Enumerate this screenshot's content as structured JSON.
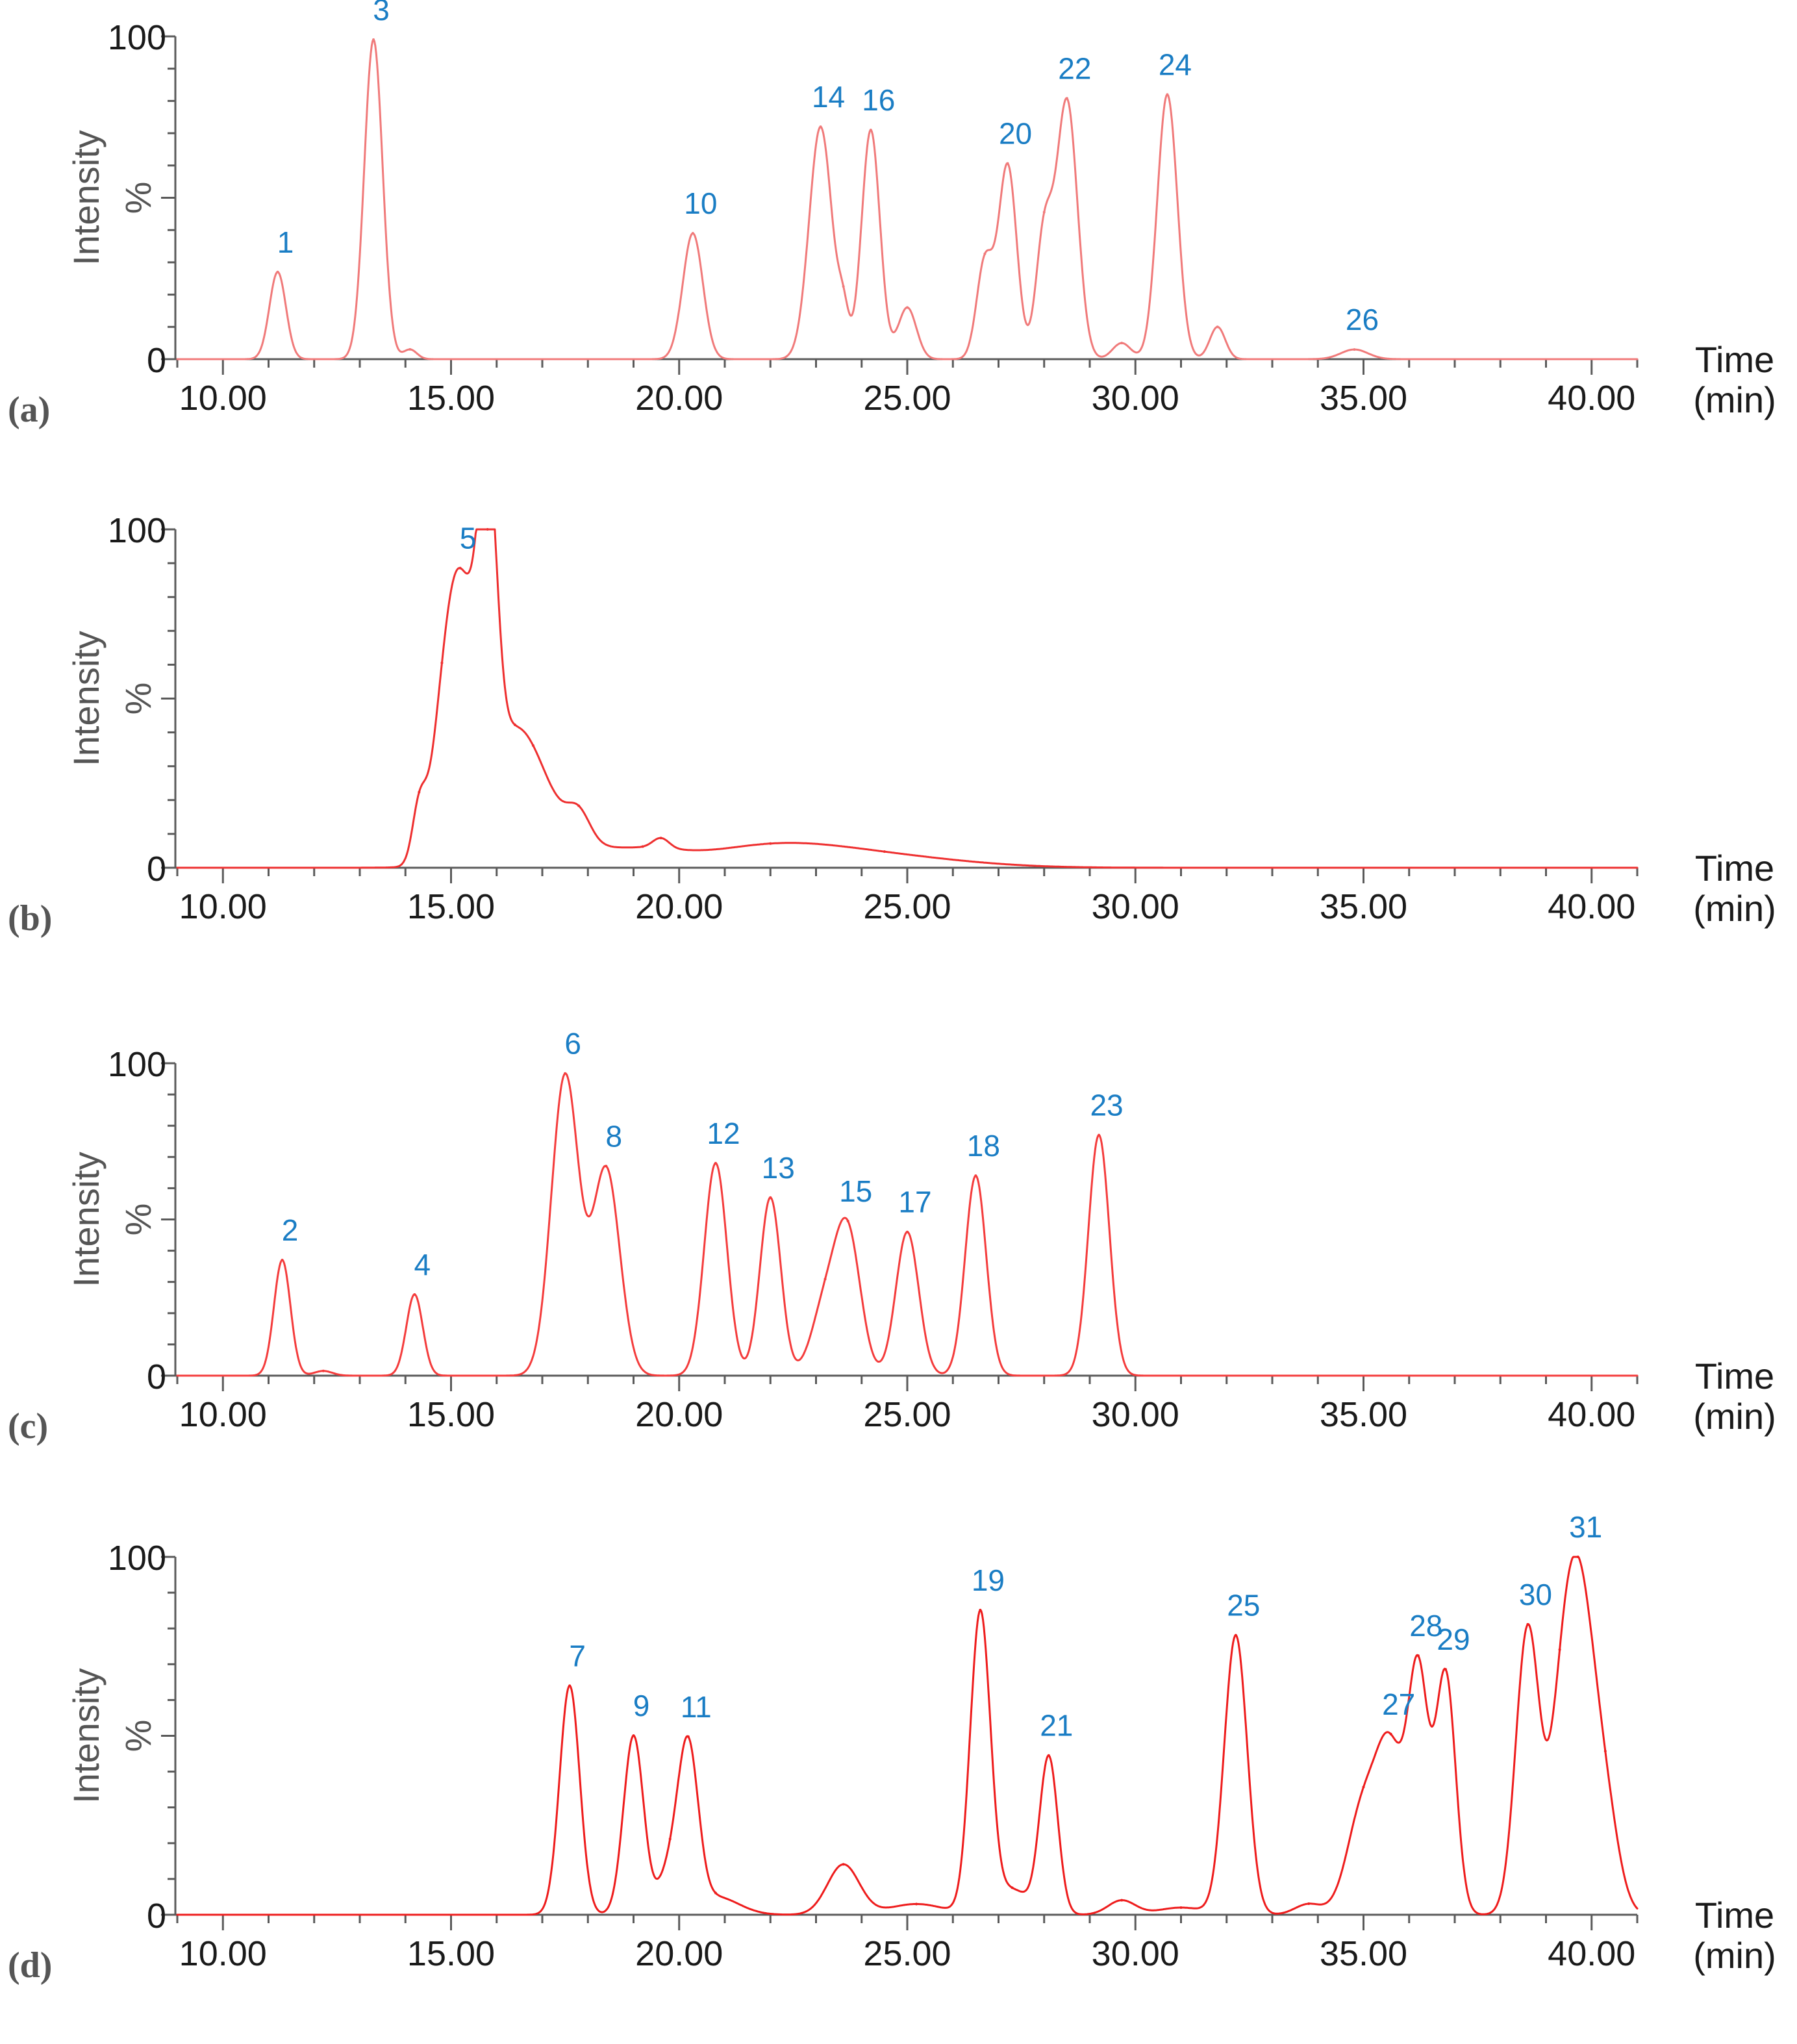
{
  "colors": {
    "trace_a": "#f07a7a",
    "trace_b": "#ee2f2f",
    "trace_c": "#f43c3c",
    "trace_d": "#ee1c1c",
    "peak_label": "#1a7dc4",
    "axis": "#5a5a5a"
  },
  "chart_data": [
    {
      "type": "line",
      "panel_label": "(a)",
      "xlabel": "Time",
      "xunit": "(min)",
      "ylabel": "Intensity",
      "yunit": "%",
      "xlim": [
        9.0,
        41.0
      ],
      "ylim": [
        0,
        100
      ],
      "x_ticks": [
        "10.00",
        "15.00",
        "20.00",
        "25.00",
        "30.00",
        "35.00",
        "40.00"
      ],
      "y_ticks": [
        "0",
        "100"
      ],
      "peaks": [
        {
          "label": "1",
          "x": 11.2,
          "y": 27,
          "w": 0.18
        },
        {
          "label": "3",
          "x": 13.3,
          "y": 99,
          "w": 0.2
        },
        {
          "label": "",
          "x": 14.1,
          "y": 3,
          "w": 0.15
        },
        {
          "label": "10",
          "x": 20.3,
          "y": 39,
          "w": 0.22
        },
        {
          "label": "14",
          "x": 23.1,
          "y": 72,
          "w": 0.25
        },
        {
          "label": "",
          "x": 23.6,
          "y": 12,
          "w": 0.12
        },
        {
          "label": "16",
          "x": 24.2,
          "y": 71,
          "w": 0.2
        },
        {
          "label": "",
          "x": 25.0,
          "y": 16,
          "w": 0.2
        },
        {
          "label": "",
          "x": 26.7,
          "y": 30,
          "w": 0.18
        },
        {
          "label": "20",
          "x": 27.2,
          "y": 60,
          "w": 0.2
        },
        {
          "label": "",
          "x": 28.0,
          "y": 38,
          "w": 0.18
        },
        {
          "label": "22",
          "x": 28.5,
          "y": 80,
          "w": 0.23
        },
        {
          "label": "",
          "x": 29.7,
          "y": 5,
          "w": 0.2
        },
        {
          "label": "24",
          "x": 30.7,
          "y": 82,
          "w": 0.22
        },
        {
          "label": "",
          "x": 31.8,
          "y": 10,
          "w": 0.17
        },
        {
          "label": "26",
          "x": 34.8,
          "y": 3,
          "w": 0.3
        }
      ]
    },
    {
      "type": "line",
      "panel_label": "(b)",
      "xlabel": "Time",
      "xunit": "(min)",
      "ylabel": "Intensity",
      "yunit": "%",
      "xlim": [
        9.0,
        41.0
      ],
      "ylim": [
        0,
        100
      ],
      "x_ticks": [
        "10.00",
        "15.00",
        "20.00",
        "25.00",
        "30.00",
        "35.00",
        "40.00"
      ],
      "y_ticks": [
        "0",
        "100"
      ],
      "peaks": [
        {
          "label": "",
          "x": 14.3,
          "y": 15,
          "w": 0.15
        },
        {
          "label": "",
          "x": 14.8,
          "y": 20,
          "w": 0.28
        },
        {
          "label": "5",
          "x": 15.2,
          "y": 73,
          "w": 0.35
        },
        {
          "label": "",
          "x": 15.8,
          "y": 85,
          "w": 0.2
        },
        {
          "label": "",
          "x": 16.4,
          "y": 30,
          "w": 0.6
        },
        {
          "label": "",
          "x": 16.8,
          "y": 12,
          "w": 1.0
        },
        {
          "label": "",
          "x": 17.8,
          "y": 8,
          "w": 0.25
        },
        {
          "label": "",
          "x": 19.2,
          "y": 4,
          "w": 0.8
        },
        {
          "label": "",
          "x": 19.6,
          "y": 3,
          "w": 0.18
        },
        {
          "label": "",
          "x": 22.0,
          "y": 6,
          "w": 1.6
        },
        {
          "label": "",
          "x": 24.5,
          "y": 3,
          "w": 1.8
        }
      ]
    },
    {
      "type": "line",
      "panel_label": "(c)",
      "xlabel": "Time",
      "xunit": "(min)",
      "ylabel": "Intensity",
      "yunit": "%",
      "xlim": [
        9.0,
        41.0
      ],
      "ylim": [
        0,
        100
      ],
      "x_ticks": [
        "10.00",
        "15.00",
        "20.00",
        "25.00",
        "30.00",
        "35.00",
        "40.00"
      ],
      "y_ticks": [
        "0",
        "100"
      ],
      "peaks": [
        {
          "label": "2",
          "x": 11.3,
          "y": 37,
          "w": 0.18
        },
        {
          "label": "",
          "x": 12.2,
          "y": 1.5,
          "w": 0.2
        },
        {
          "label": "4",
          "x": 14.2,
          "y": 26,
          "w": 0.18
        },
        {
          "label": "6",
          "x": 17.5,
          "y": 96,
          "w": 0.3
        },
        {
          "label": "8",
          "x": 18.4,
          "y": 66,
          "w": 0.3
        },
        {
          "label": "12",
          "x": 20.8,
          "y": 68,
          "w": 0.25
        },
        {
          "label": "13",
          "x": 22.0,
          "y": 57,
          "w": 0.23
        },
        {
          "label": "",
          "x": 23.2,
          "y": 22,
          "w": 0.3
        },
        {
          "label": "15",
          "x": 23.7,
          "y": 44,
          "w": 0.28
        },
        {
          "label": "17",
          "x": 25.0,
          "y": 46,
          "w": 0.25
        },
        {
          "label": "18",
          "x": 26.5,
          "y": 64,
          "w": 0.23
        },
        {
          "label": "23",
          "x": 29.2,
          "y": 77,
          "w": 0.23
        }
      ]
    },
    {
      "type": "line",
      "panel_label": "(d)",
      "xlabel": "Time",
      "xunit": "(min)",
      "ylabel": "Intensity",
      "yunit": "%",
      "xlim": [
        9.0,
        41.0
      ],
      "ylim": [
        0,
        100
      ],
      "x_ticks": [
        "10.00",
        "15.00",
        "20.00",
        "25.00",
        "30.00",
        "35.00",
        "40.00"
      ],
      "y_ticks": [
        "0",
        "100"
      ],
      "peaks": [
        {
          "label": "7",
          "x": 17.6,
          "y": 64,
          "w": 0.22
        },
        {
          "label": "9",
          "x": 19.0,
          "y": 50,
          "w": 0.22
        },
        {
          "label": "",
          "x": 19.8,
          "y": 12,
          "w": 0.25
        },
        {
          "label": "11",
          "x": 20.2,
          "y": 44,
          "w": 0.22
        },
        {
          "label": "",
          "x": 20.8,
          "y": 5,
          "w": 0.5
        },
        {
          "label": "",
          "x": 23.6,
          "y": 14,
          "w": 0.35
        },
        {
          "label": "",
          "x": 25.2,
          "y": 3,
          "w": 0.6
        },
        {
          "label": "19",
          "x": 26.6,
          "y": 84,
          "w": 0.22
        },
        {
          "label": "",
          "x": 27.3,
          "y": 7,
          "w": 0.35
        },
        {
          "label": "21",
          "x": 28.1,
          "y": 44,
          "w": 0.2
        },
        {
          "label": "",
          "x": 29.7,
          "y": 4,
          "w": 0.3
        },
        {
          "label": "",
          "x": 31.0,
          "y": 2,
          "w": 0.5
        },
        {
          "label": "25",
          "x": 32.2,
          "y": 78,
          "w": 0.25
        },
        {
          "label": "",
          "x": 33.8,
          "y": 3,
          "w": 0.3
        },
        {
          "label": "",
          "x": 35.0,
          "y": 30,
          "w": 0.35
        },
        {
          "label": "27",
          "x": 35.6,
          "y": 42,
          "w": 0.3
        },
        {
          "label": "28",
          "x": 36.2,
          "y": 65,
          "w": 0.22
        },
        {
          "label": "29",
          "x": 36.8,
          "y": 67,
          "w": 0.22
        },
        {
          "label": "30",
          "x": 38.6,
          "y": 80,
          "w": 0.26
        },
        {
          "label": "",
          "x": 39.3,
          "y": 25,
          "w": 0.25
        },
        {
          "label": "31",
          "x": 39.7,
          "y": 90,
          "w": 0.35
        },
        {
          "label": "",
          "x": 40.3,
          "y": 25,
          "w": 0.3
        }
      ]
    }
  ]
}
